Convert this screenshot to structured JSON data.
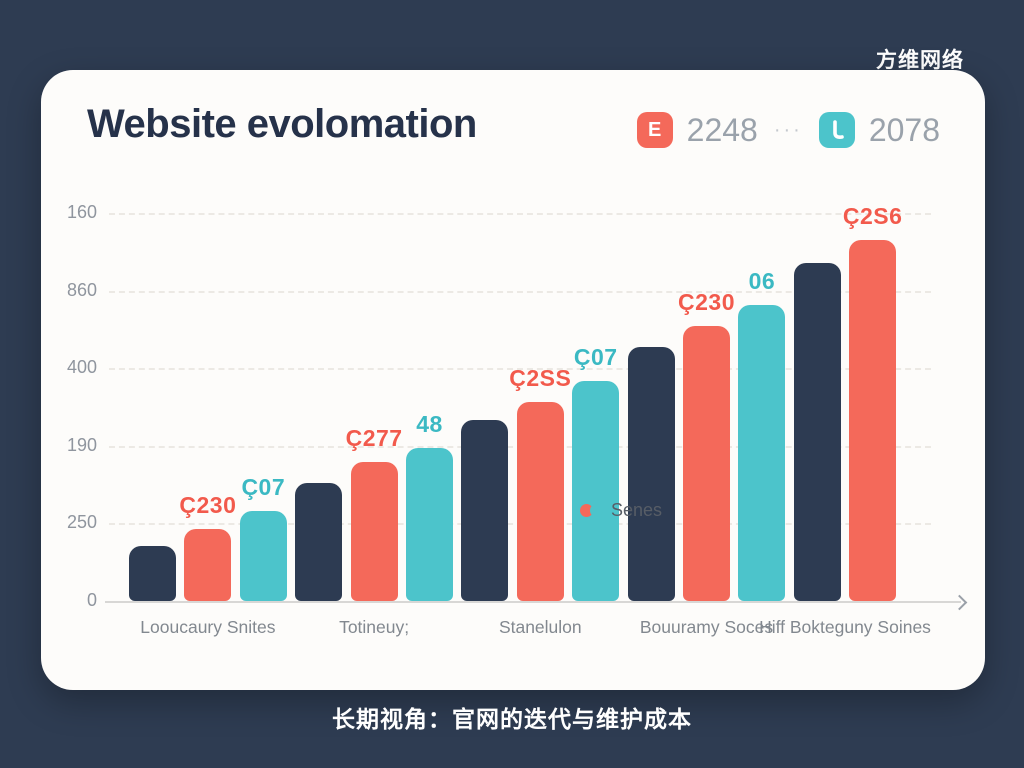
{
  "page": {
    "background_color": "#2e3c52",
    "watermark": "方维网络",
    "caption": "长期视角：官网的迭代与维护成本"
  },
  "card": {
    "title": "Website evolomation",
    "legend": [
      {
        "icon": "E",
        "icon_name": "e-badge-icon",
        "icon_color": "#f4695a",
        "value": "2248"
      },
      {
        "icon": "Ɩ",
        "icon_name": "down-hook-icon",
        "icon_color": "#4cc4cb",
        "value": "2078"
      }
    ],
    "legend_separator": "···",
    "footer_legend": {
      "label": "Senes",
      "dot_colors": [
        "#f4695a",
        "#4cc4cb"
      ]
    }
  },
  "chart_data": {
    "type": "bar",
    "title": "Website evolomation",
    "xlabel": "",
    "ylabel": "",
    "grid": "horizontal-dashed",
    "legend_position": "top-right",
    "axis_arrow": true,
    "y_ticks": [
      {
        "label": "160",
        "pos_pct": 0
      },
      {
        "label": "860",
        "pos_pct": 20
      },
      {
        "label": "400",
        "pos_pct": 40
      },
      {
        "label": "190",
        "pos_pct": 60
      },
      {
        "label": "250",
        "pos_pct": 80
      },
      {
        "label": "0",
        "pos_pct": 100
      }
    ],
    "gridlines_pct": [
      0,
      20,
      40,
      60,
      80
    ],
    "categories": [
      "Looucaury Snites",
      "Totineuy;",
      "Stanelulon",
      "Bouuramy Soces",
      "Hiff Bokteguny Soines"
    ],
    "series": [
      {
        "name": "navy",
        "color": "#2d3b52",
        "label_color": "#2d3b52",
        "heights_pct": [
          14.2,
          30.4,
          46.6,
          65.5,
          87.1
        ],
        "labels": [
          "",
          "",
          "",
          "",
          ""
        ]
      },
      {
        "name": "orange",
        "color": "#f4695a",
        "label_color": "#f25a4c",
        "heights_pct": [
          18.6,
          35.8,
          51.3,
          70.9,
          93.0
        ],
        "labels": [
          "Ç230",
          "Ç277",
          "Ç2SS",
          "Ç230",
          "Ç2S6"
        ]
      },
      {
        "name": "teal",
        "color": "#4cc4cb",
        "label_color": "#3bb9c3",
        "heights_pct": [
          23.2,
          39.4,
          56.7,
          76.3,
          null
        ],
        "labels": [
          "Ç07",
          "48",
          "Ç07",
          "06",
          ""
        ]
      }
    ]
  }
}
